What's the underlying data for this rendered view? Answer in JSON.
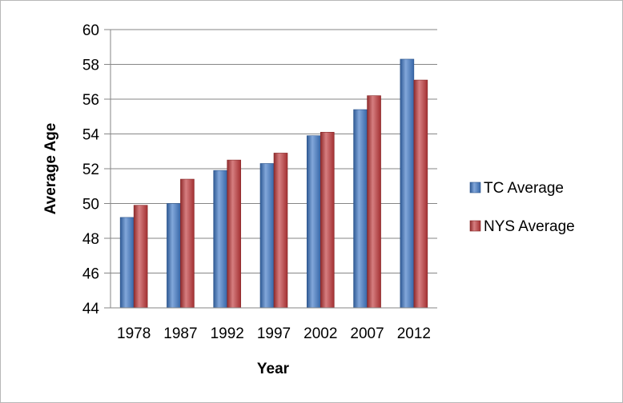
{
  "chart_data": {
    "type": "bar",
    "title": "",
    "xlabel": "Year",
    "ylabel": "Average Age",
    "categories": [
      "1978",
      "1987",
      "1992",
      "1997",
      "2002",
      "2007",
      "2012"
    ],
    "series": [
      {
        "name": "TC Average",
        "values": [
          49.2,
          50.0,
          51.9,
          52.3,
          53.9,
          55.4,
          58.3
        ],
        "color": "#3f78c6"
      },
      {
        "name": "NYS Average",
        "values": [
          49.9,
          51.4,
          52.5,
          52.9,
          54.1,
          56.2,
          57.1
        ],
        "color": "#c0393b"
      }
    ],
    "ylim": [
      44,
      60
    ],
    "yticks": [
      "44",
      "46",
      "48",
      "50",
      "52",
      "54",
      "56",
      "58",
      "60"
    ],
    "grid": true,
    "legend": "right"
  }
}
